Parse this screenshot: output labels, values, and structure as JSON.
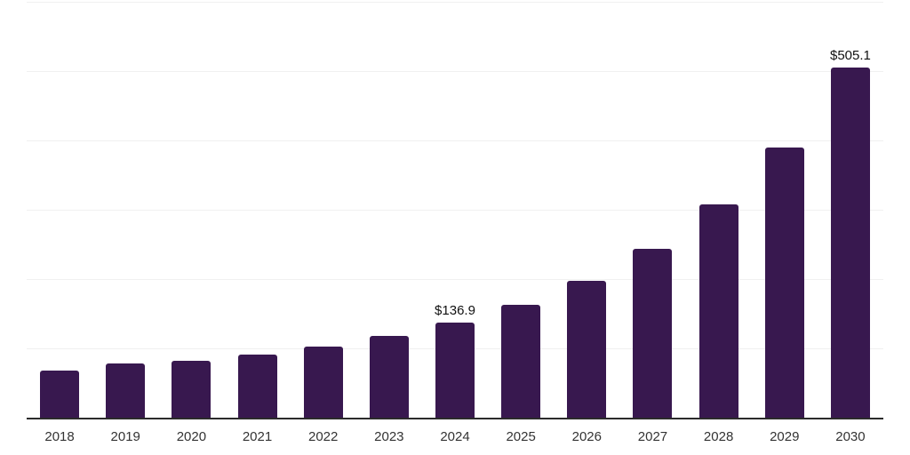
{
  "chart_data": {
    "type": "bar",
    "title": "",
    "xlabel": "",
    "ylabel": "",
    "categories": [
      "2018",
      "2019",
      "2020",
      "2021",
      "2022",
      "2023",
      "2024",
      "2025",
      "2026",
      "2027",
      "2028",
      "2029",
      "2030"
    ],
    "values": [
      68.2,
      78.1,
      81.5,
      90.9,
      102.4,
      117.4,
      136.9,
      162.2,
      197.1,
      243.2,
      307.2,
      390.4,
      505.1
    ],
    "point_labels": [
      "",
      "",
      "",
      "",
      "",
      "",
      "$136.9",
      "",
      "",
      "",
      "",
      "",
      "$505.1"
    ],
    "ylim": [
      0,
      600
    ],
    "gridline_step": 100,
    "grid": true,
    "legend": "none",
    "y_tick_labels_visible": false,
    "colors": {
      "bar": "#38184F",
      "axis": "#2b2b2b",
      "grid": "#f0f0f0",
      "x_label_text": "#333333",
      "data_label_text": "#111111",
      "background": "#ffffff"
    }
  }
}
